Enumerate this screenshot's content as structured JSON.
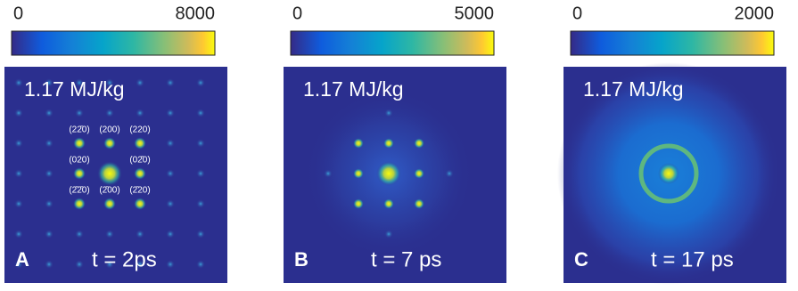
{
  "panels": [
    {
      "letter": "A",
      "fluence": "1.17 MJ/kg",
      "time": "t = 2ps",
      "colorbar": {
        "min": "0",
        "max": "8000"
      },
      "spot_labels": [
        "(22̄0)",
        "(200)",
        "(220)",
        "(020)",
        "(02̄0)",
        "(2̄2̄0)",
        "(2̄00)",
        "(2̄20)"
      ]
    },
    {
      "letter": "B",
      "fluence": "1.17 MJ/kg",
      "time": "t = 7 ps",
      "colorbar": {
        "min": "0",
        "max": "5000"
      }
    },
    {
      "letter": "C",
      "fluence": "1.17 MJ/kg",
      "time": "t = 17 ps",
      "colorbar": {
        "min": "0",
        "max": "2000"
      }
    }
  ]
}
